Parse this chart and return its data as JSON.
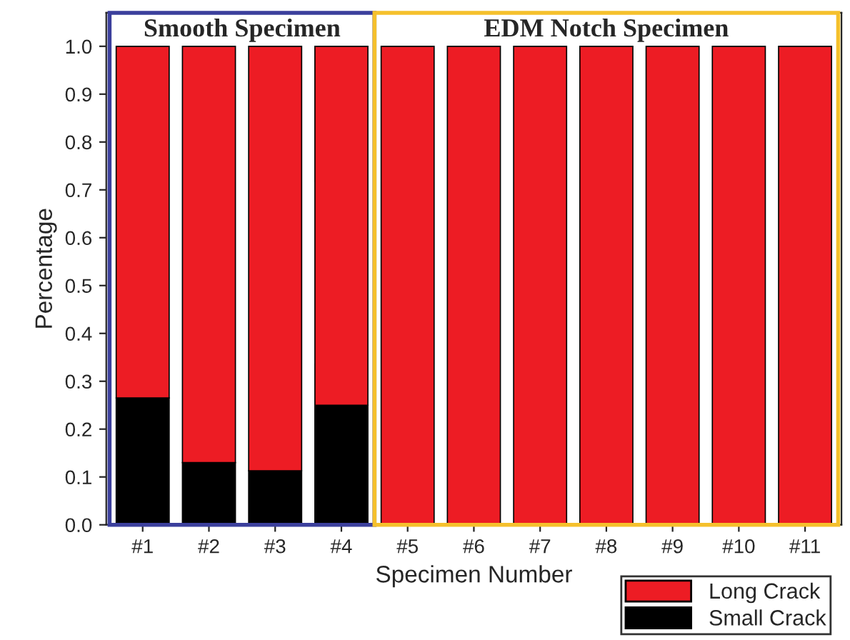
{
  "chart_data": {
    "type": "bar",
    "stacked": true,
    "xlabel": "Specimen Number",
    "ylabel": "Percentage",
    "categories": [
      "#1",
      "#2",
      "#3",
      "#4",
      "#5",
      "#6",
      "#7",
      "#8",
      "#9",
      "#10",
      "#11"
    ],
    "series": [
      {
        "name": "Small Crack",
        "color": "#000000",
        "values": [
          0.265,
          0.13,
          0.113,
          0.25,
          0,
          0,
          0,
          0,
          0,
          0,
          0
        ]
      },
      {
        "name": "Long Crack",
        "color": "#ed1c24",
        "values": [
          0.735,
          0.87,
          0.887,
          0.75,
          1.0,
          1.0,
          1.0,
          1.0,
          1.0,
          1.0,
          1.0
        ]
      }
    ],
    "ylim": [
      0,
      1.07
    ],
    "yticks": [
      {
        "value": 0,
        "label": "0.0"
      },
      0.1,
      0.2,
      0.3,
      0.4,
      0.5,
      0.6,
      0.7,
      0.8,
      0.9,
      {
        "value": 1,
        "label": "1.0"
      }
    ],
    "annotations": [
      "Smooth Specimen",
      "EDM Notch Specimen"
    ],
    "legend": "bottom right",
    "grid": false
  }
}
